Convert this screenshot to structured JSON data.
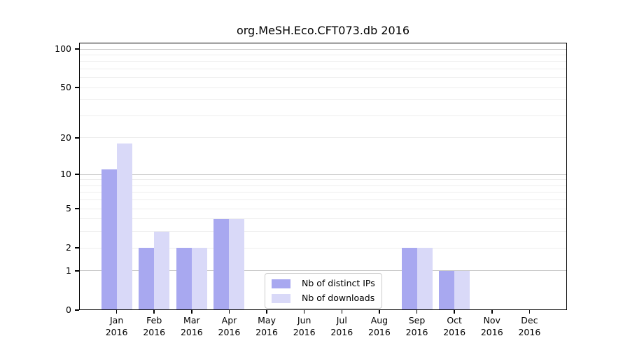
{
  "title": "org.MeSH.Eco.CFT073.db 2016",
  "chart_data": {
    "type": "bar",
    "title": "org.MeSH.Eco.CFT073.db 2016",
    "categories": [
      "Jan",
      "Feb",
      "Mar",
      "Apr",
      "May",
      "Jun",
      "Jul",
      "Aug",
      "Sep",
      "Oct",
      "Nov",
      "Dec"
    ],
    "year_label": "2016",
    "series": [
      {
        "name": "Nb of distinct IPs",
        "color": "#a8a8f0",
        "values": [
          11,
          2,
          2,
          4,
          0,
          0,
          0,
          0,
          2,
          1,
          0,
          0
        ]
      },
      {
        "name": "Nb of downloads",
        "color": "#d9d9f8",
        "values": [
          18,
          3,
          2,
          4,
          0,
          0,
          0,
          0,
          2,
          1,
          0,
          0
        ]
      }
    ],
    "y_scale": "log1p",
    "ylim": [
      0,
      112
    ],
    "y_ticks": [
      100,
      50,
      20,
      10,
      5,
      2,
      1,
      0
    ],
    "y_major_grid": [
      1,
      10,
      100
    ],
    "y_minor_grid": [
      2,
      3,
      4,
      5,
      6,
      7,
      8,
      9,
      20,
      30,
      40,
      50,
      60,
      70,
      80,
      90
    ],
    "grid": true,
    "legend_position": "lower center",
    "colors": {
      "major_grid": "#c9c9c9",
      "minor_grid": "#ededed",
      "axis": "#000000",
      "legend_border": "#cccccc"
    }
  }
}
